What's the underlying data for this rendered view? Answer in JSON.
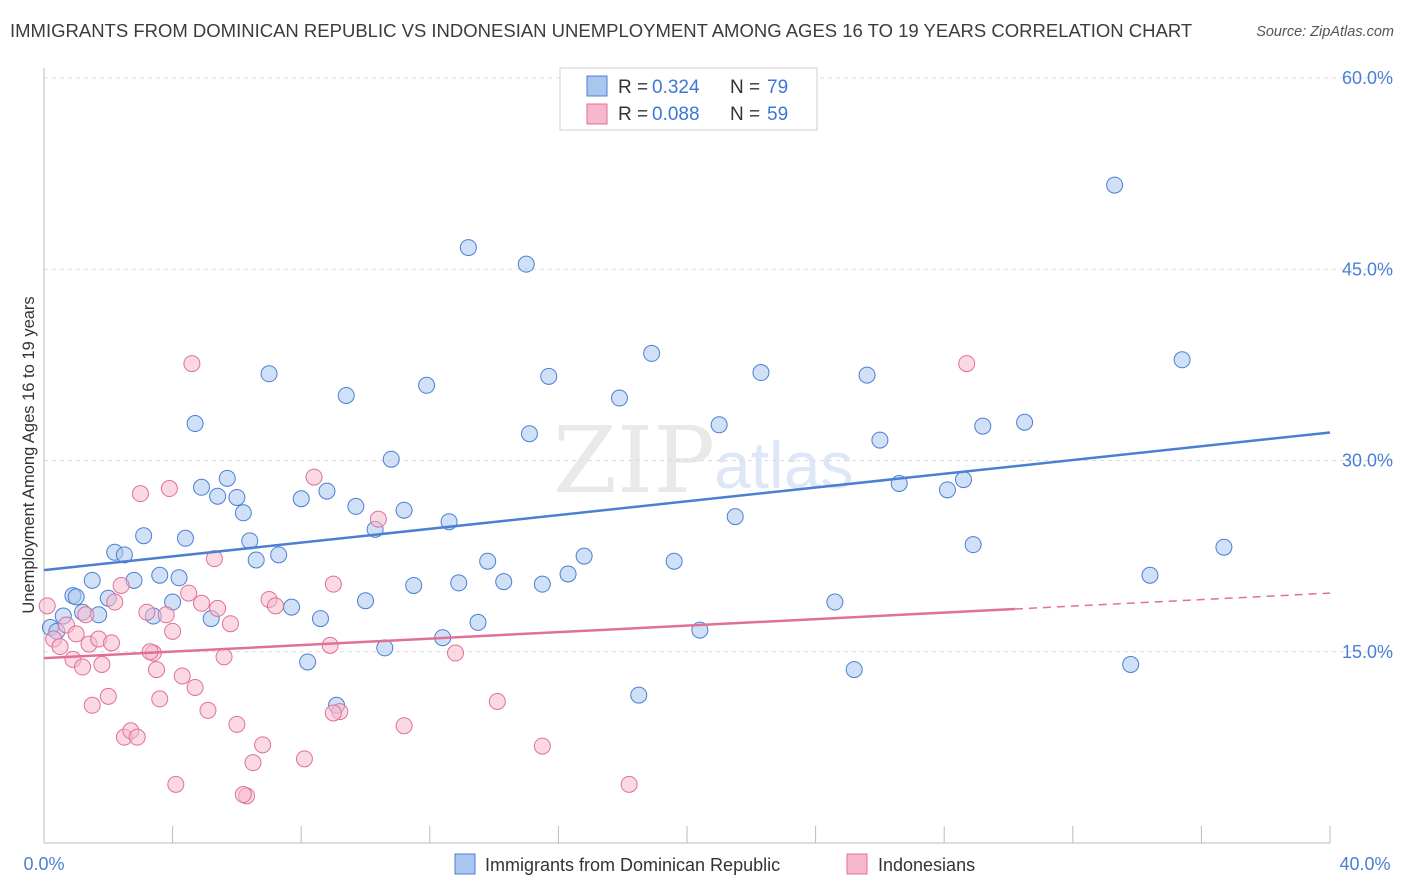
{
  "title": "IMMIGRANTS FROM DOMINICAN REPUBLIC VS INDONESIAN UNEMPLOYMENT AMONG AGES 16 TO 19 YEARS CORRELATION CHART",
  "source": "Source: ZipAtlas.com",
  "watermark": {
    "zip": "ZIP",
    "atlas": "atlas"
  },
  "colors": {
    "blue": "#4a7fd4",
    "blue_fill": "#a9c6ef",
    "pink": "#e0709a",
    "pink_fill": "#f6b9cc",
    "grid": "#d8d8d8"
  },
  "chart_data": {
    "type": "scatter",
    "xlabel": "",
    "ylabel": "Unemployment Among Ages 16 to 19 years",
    "xlim": [
      0,
      40
    ],
    "ylim": [
      0,
      60
    ],
    "x_tick_labels": [
      "0.0%",
      "40.0%"
    ],
    "y_ticks": [
      15,
      30,
      45,
      60
    ],
    "y_tick_labels": [
      "15.0%",
      "30.0%",
      "45.0%",
      "60.0%"
    ],
    "legend": [
      {
        "r_label": "R =",
        "r_value": "0.324",
        "n_label": "N =",
        "n_value": "79"
      },
      {
        "r_label": "R =",
        "r_value": "0.088",
        "n_label": "N =",
        "n_value": "59"
      }
    ],
    "series": [
      {
        "name": "Immigrants from Dominican Republic",
        "color": "#4a7fd4",
        "trend": {
          "x0": 0,
          "y0": 21.4,
          "x1": 40,
          "y1": 32.2,
          "dash_from": null
        },
        "points": [
          [
            0.2,
            16.9
          ],
          [
            0.4,
            16.6
          ],
          [
            0.6,
            17.8
          ],
          [
            0.9,
            19.4
          ],
          [
            1.0,
            19.3
          ],
          [
            1.2,
            18.1
          ],
          [
            1.5,
            20.6
          ],
          [
            1.7,
            17.9
          ],
          [
            2.0,
            19.2
          ],
          [
            2.2,
            22.8
          ],
          [
            2.5,
            22.6
          ],
          [
            2.8,
            20.6
          ],
          [
            3.1,
            24.1
          ],
          [
            3.4,
            17.8
          ],
          [
            3.6,
            21.0
          ],
          [
            4.0,
            18.9
          ],
          [
            4.2,
            20.8
          ],
          [
            4.4,
            23.9
          ],
          [
            4.7,
            32.9
          ],
          [
            4.9,
            27.9
          ],
          [
            5.2,
            17.6
          ],
          [
            5.4,
            27.2
          ],
          [
            5.7,
            28.6
          ],
          [
            6.0,
            27.1
          ],
          [
            6.2,
            25.9
          ],
          [
            6.4,
            23.7
          ],
          [
            6.6,
            22.2
          ],
          [
            7.0,
            36.8
          ],
          [
            7.3,
            22.6
          ],
          [
            7.7,
            18.5
          ],
          [
            8.0,
            27.0
          ],
          [
            8.2,
            14.2
          ],
          [
            8.6,
            17.6
          ],
          [
            8.8,
            27.6
          ],
          [
            9.1,
            10.8
          ],
          [
            9.4,
            35.1
          ],
          [
            9.7,
            26.4
          ],
          [
            10.0,
            19.0
          ],
          [
            10.3,
            24.6
          ],
          [
            10.6,
            15.3
          ],
          [
            10.8,
            30.1
          ],
          [
            11.2,
            26.1
          ],
          [
            11.5,
            20.2
          ],
          [
            11.9,
            35.9
          ],
          [
            12.4,
            16.1
          ],
          [
            12.6,
            25.2
          ],
          [
            12.9,
            20.4
          ],
          [
            13.2,
            46.7
          ],
          [
            13.5,
            17.3
          ],
          [
            13.8,
            22.1
          ],
          [
            14.3,
            20.5
          ],
          [
            15.0,
            45.4
          ],
          [
            15.1,
            32.1
          ],
          [
            15.5,
            20.3
          ],
          [
            15.7,
            36.6
          ],
          [
            16.3,
            21.1
          ],
          [
            16.8,
            22.5
          ],
          [
            17.9,
            34.9
          ],
          [
            18.5,
            11.6
          ],
          [
            18.9,
            38.4
          ],
          [
            19.6,
            22.1
          ],
          [
            20.4,
            16.7
          ],
          [
            21.0,
            32.8
          ],
          [
            21.5,
            25.6
          ],
          [
            22.3,
            36.9
          ],
          [
            24.6,
            18.9
          ],
          [
            25.2,
            13.6
          ],
          [
            25.6,
            36.7
          ],
          [
            26.0,
            31.6
          ],
          [
            26.6,
            28.2
          ],
          [
            28.1,
            27.7
          ],
          [
            28.6,
            28.5
          ],
          [
            28.9,
            23.4
          ],
          [
            29.2,
            32.7
          ],
          [
            30.5,
            33.0
          ],
          [
            33.3,
            51.6
          ],
          [
            33.8,
            14.0
          ],
          [
            34.4,
            21.0
          ],
          [
            35.4,
            37.9
          ],
          [
            36.7,
            23.2
          ]
        ]
      },
      {
        "name": "Indonesians",
        "color": "#e0709a",
        "trend": {
          "x0": 0,
          "y0": 14.5,
          "x1": 40,
          "y1": 19.6,
          "dash_from": 30.2
        },
        "points": [
          [
            0.1,
            18.6
          ],
          [
            0.3,
            16.0
          ],
          [
            0.5,
            15.4
          ],
          [
            0.7,
            17.1
          ],
          [
            0.9,
            14.4
          ],
          [
            1.0,
            16.4
          ],
          [
            1.2,
            13.8
          ],
          [
            1.4,
            15.6
          ],
          [
            1.5,
            10.8
          ],
          [
            1.7,
            16.0
          ],
          [
            1.8,
            14.0
          ],
          [
            2.0,
            11.5
          ],
          [
            2.2,
            18.9
          ],
          [
            2.4,
            20.2
          ],
          [
            2.5,
            8.3
          ],
          [
            2.7,
            8.8
          ],
          [
            2.9,
            8.3
          ],
          [
            3.0,
            27.4
          ],
          [
            3.2,
            18.1
          ],
          [
            3.4,
            14.9
          ],
          [
            3.5,
            13.6
          ],
          [
            3.6,
            11.3
          ],
          [
            3.8,
            17.9
          ],
          [
            3.9,
            27.8
          ],
          [
            4.0,
            16.6
          ],
          [
            4.3,
            13.1
          ],
          [
            4.5,
            19.6
          ],
          [
            4.6,
            37.6
          ],
          [
            4.7,
            12.2
          ],
          [
            4.9,
            18.8
          ],
          [
            5.1,
            10.4
          ],
          [
            5.3,
            22.3
          ],
          [
            5.6,
            14.6
          ],
          [
            5.8,
            17.2
          ],
          [
            6.0,
            9.3
          ],
          [
            6.3,
            3.7
          ],
          [
            6.5,
            6.3
          ],
          [
            6.8,
            7.7
          ],
          [
            7.0,
            19.1
          ],
          [
            7.2,
            18.6
          ],
          [
            8.1,
            6.6
          ],
          [
            8.4,
            28.7
          ],
          [
            8.9,
            15.5
          ],
          [
            9.0,
            20.3
          ],
          [
            9.2,
            10.3
          ],
          [
            10.4,
            25.4
          ],
          [
            11.2,
            9.2
          ],
          [
            12.8,
            14.9
          ],
          [
            14.1,
            11.1
          ],
          [
            15.5,
            7.6
          ],
          [
            18.2,
            4.6
          ],
          [
            4.1,
            4.6
          ],
          [
            6.2,
            3.8
          ],
          [
            9.0,
            10.2
          ],
          [
            3.3,
            15.0
          ],
          [
            2.1,
            15.7
          ],
          [
            1.3,
            17.9
          ],
          [
            5.4,
            18.4
          ],
          [
            28.7,
            37.6
          ]
        ]
      }
    ]
  }
}
